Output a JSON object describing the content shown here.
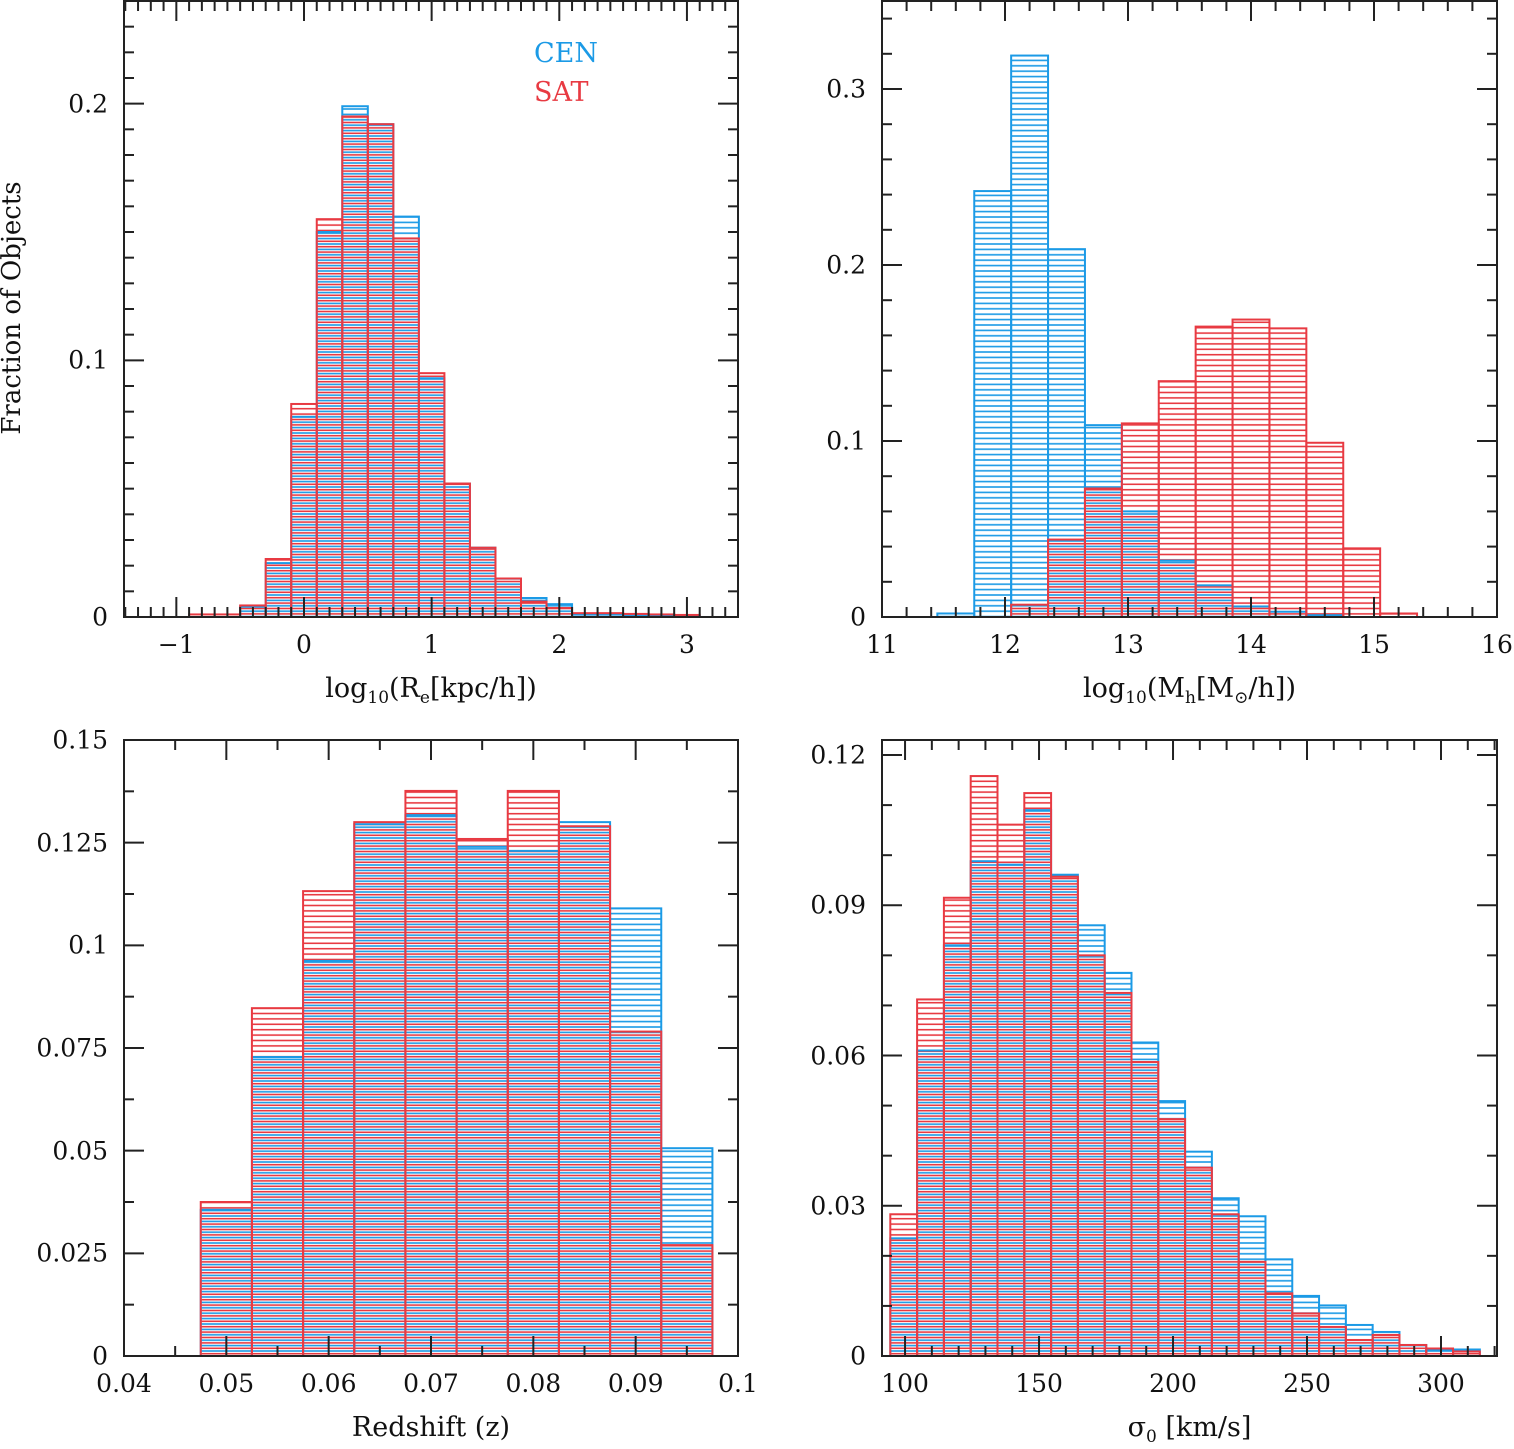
{
  "figure": {
    "ylabel": "Fraction of Objects",
    "legend": [
      {
        "label": "CEN",
        "color": "#1b9ae6"
      },
      {
        "label": "SAT",
        "color": "#e83a42"
      }
    ]
  },
  "chart_data": [
    {
      "type": "bar",
      "style": "step histogram, horizontal hatch fill",
      "xlabel_parts": [
        {
          "t": "log"
        },
        {
          "t": "10",
          "sub": true
        },
        {
          "t": "(R"
        },
        {
          "t": "e",
          "sub": true
        },
        {
          "t": "[kpc/h])"
        }
      ],
      "xlim": [
        -1.41,
        3.4
      ],
      "ylim": [
        0,
        0.24
      ],
      "xticks": [
        {
          "v": -1,
          "label": "−1"
        },
        {
          "v": 0,
          "label": "0"
        },
        {
          "v": 1,
          "label": "1"
        },
        {
          "v": 2,
          "label": "2"
        },
        {
          "v": 3,
          "label": "3"
        }
      ],
      "yticks": [
        {
          "v": 0,
          "label": "0"
        },
        {
          "v": 0.1,
          "label": "0.1"
        },
        {
          "v": 0.2,
          "label": "0.2"
        }
      ],
      "xminor": 0.1,
      "yminor": 0.01,
      "bin_edges": [
        -0.9,
        -0.7,
        -0.5,
        -0.3,
        -0.1,
        0.1,
        0.3,
        0.5,
        0.7,
        0.9,
        1.1,
        1.3,
        1.5,
        1.7,
        1.9,
        2.1,
        2.3,
        2.5,
        2.7,
        2.9,
        3.1
      ],
      "series": [
        {
          "name": "CEN",
          "values": [
            0,
            0,
            0.004,
            0.021,
            0.078,
            0.15,
            0.199,
            0.192,
            0.156,
            0.093,
            0.052,
            0.027,
            0.015,
            0.0074,
            0.005,
            0.001,
            0.001,
            0.0008,
            0.0005,
            0.0003
          ]
        },
        {
          "name": "SAT",
          "values": [
            0.001,
            0.001,
            0.0045,
            0.0226,
            0.083,
            0.155,
            0.195,
            0.192,
            0.1475,
            0.095,
            0.052,
            0.027,
            0.015,
            0.006,
            0.0035,
            0.0015,
            0.0015,
            0.0012,
            0.001,
            0.0008
          ]
        }
      ]
    },
    {
      "type": "bar",
      "style": "step histogram, horizontal hatch fill",
      "xlabel_parts": [
        {
          "t": "log"
        },
        {
          "t": "10",
          "sub": true
        },
        {
          "t": "(M"
        },
        {
          "t": "h",
          "sub": true
        },
        {
          "t": "[M"
        },
        {
          "t": "⊙",
          "sub": true
        },
        {
          "t": "/h])"
        }
      ],
      "xlim": [
        11,
        16
      ],
      "ylim": [
        0,
        0.35
      ],
      "xticks": [
        {
          "v": 11,
          "label": "11"
        },
        {
          "v": 12,
          "label": "12"
        },
        {
          "v": 13,
          "label": "13"
        },
        {
          "v": 14,
          "label": "14"
        },
        {
          "v": 15,
          "label": "15"
        },
        {
          "v": 16,
          "label": "16"
        }
      ],
      "yticks": [
        {
          "v": 0,
          "label": "0"
        },
        {
          "v": 0.1,
          "label": "0.1"
        },
        {
          "v": 0.2,
          "label": "0.2"
        },
        {
          "v": 0.3,
          "label": "0.3"
        }
      ],
      "xminor": 0.2,
      "yminor": 0.02,
      "bin_edges": [
        11.15,
        11.45,
        11.75,
        12.05,
        12.35,
        12.65,
        12.95,
        13.25,
        13.55,
        13.85,
        14.15,
        14.45,
        14.75,
        15.05,
        15.35
      ],
      "series": [
        {
          "name": "CEN",
          "values": [
            0,
            0.002,
            0.242,
            0.319,
            0.209,
            0.109,
            0.06,
            0.032,
            0.018,
            0.006,
            0.003,
            0.001,
            0,
            0
          ]
        },
        {
          "name": "SAT",
          "values": [
            0,
            0,
            0,
            0.007,
            0.044,
            0.073,
            0.11,
            0.134,
            0.165,
            0.169,
            0.164,
            0.099,
            0.039,
            0.002
          ]
        }
      ]
    },
    {
      "type": "bar",
      "style": "step histogram, horizontal hatch fill",
      "xlabel_parts": [
        {
          "t": "Redshift (z)"
        }
      ],
      "xlim": [
        0.04,
        0.1
      ],
      "ylim": [
        0,
        0.15
      ],
      "xticks": [
        {
          "v": 0.04,
          "label": "0.04"
        },
        {
          "v": 0.05,
          "label": "0.05"
        },
        {
          "v": 0.06,
          "label": "0.06"
        },
        {
          "v": 0.07,
          "label": "0.07"
        },
        {
          "v": 0.08,
          "label": "0.08"
        },
        {
          "v": 0.09,
          "label": "0.09"
        },
        {
          "v": 0.1,
          "label": "0.1"
        }
      ],
      "yticks": [
        {
          "v": 0,
          "label": "0"
        },
        {
          "v": 0.025,
          "label": "0.025"
        },
        {
          "v": 0.05,
          "label": "0.05"
        },
        {
          "v": 0.075,
          "label": "0.075"
        },
        {
          "v": 0.1,
          "label": "0.1"
        },
        {
          "v": 0.125,
          "label": "0.125"
        },
        {
          "v": 0.15,
          "label": "0.15"
        }
      ],
      "xminor": 0.005,
      "yminor": 0.0125,
      "bin_edges": [
        0.0475,
        0.0525,
        0.0575,
        0.0625,
        0.0675,
        0.0725,
        0.0775,
        0.0825,
        0.0875,
        0.0925,
        0.0975
      ],
      "series": [
        {
          "name": "CEN",
          "values": [
            0.0356,
            0.0728,
            0.0962,
            0.1295,
            0.1317,
            0.124,
            0.123,
            0.13,
            0.109,
            0.0506
          ]
        },
        {
          "name": "SAT",
          "values": [
            0.0375,
            0.0847,
            0.1132,
            0.13,
            0.1376,
            0.1259,
            0.1376,
            0.129,
            0.079,
            0.027
          ]
        }
      ]
    },
    {
      "type": "bar",
      "style": "step histogram, horizontal hatch fill",
      "xlabel_parts": [
        {
          "t": "σ"
        },
        {
          "t": "0",
          "sub": true
        },
        {
          "t": " [km/s]"
        }
      ],
      "xlim": [
        91.4,
        320.9
      ],
      "ylim": [
        0,
        0.123
      ],
      "xticks": [
        {
          "v": 100,
          "label": "100"
        },
        {
          "v": 150,
          "label": "150"
        },
        {
          "v": 200,
          "label": "200"
        },
        {
          "v": 250,
          "label": "250"
        },
        {
          "v": 300,
          "label": "300"
        }
      ],
      "yticks": [
        {
          "v": 0,
          "label": "0"
        },
        {
          "v": 0.03,
          "label": "0.03"
        },
        {
          "v": 0.06,
          "label": "0.06"
        },
        {
          "v": 0.09,
          "label": "0.09"
        },
        {
          "v": 0.12,
          "label": "0.12"
        }
      ],
      "xminor": 10,
      "yminor": 0.01,
      "bin_edges": [
        94.5,
        104.5,
        114.5,
        124.5,
        134.5,
        144.5,
        154.5,
        164.5,
        174.5,
        184.5,
        194.5,
        204.5,
        214.5,
        224.5,
        234.5,
        244.5,
        254.5,
        264.5,
        274.5,
        284.5,
        294.5,
        304.5,
        314.5
      ],
      "series": [
        {
          "name": "CEN",
          "values": [
            0.0235,
            0.061,
            0.082,
            0.0988,
            0.0981,
            0.109,
            0.0961,
            0.086,
            0.0765,
            0.0626,
            0.0509,
            0.0408,
            0.0315,
            0.0279,
            0.0193,
            0.012,
            0.0101,
            0.0062,
            0.0048,
            0.0022,
            0.0013,
            0.0013
          ]
        },
        {
          "name": "SAT",
          "values": [
            0.0283,
            0.0712,
            0.0915,
            0.1158,
            0.1061,
            0.1124,
            0.0957,
            0.08,
            0.0725,
            0.0587,
            0.0473,
            0.0376,
            0.0283,
            0.0188,
            0.0125,
            0.0085,
            0.0058,
            0.0032,
            0.0042,
            0.0022,
            0.0015,
            0.0009
          ]
        }
      ]
    }
  ]
}
